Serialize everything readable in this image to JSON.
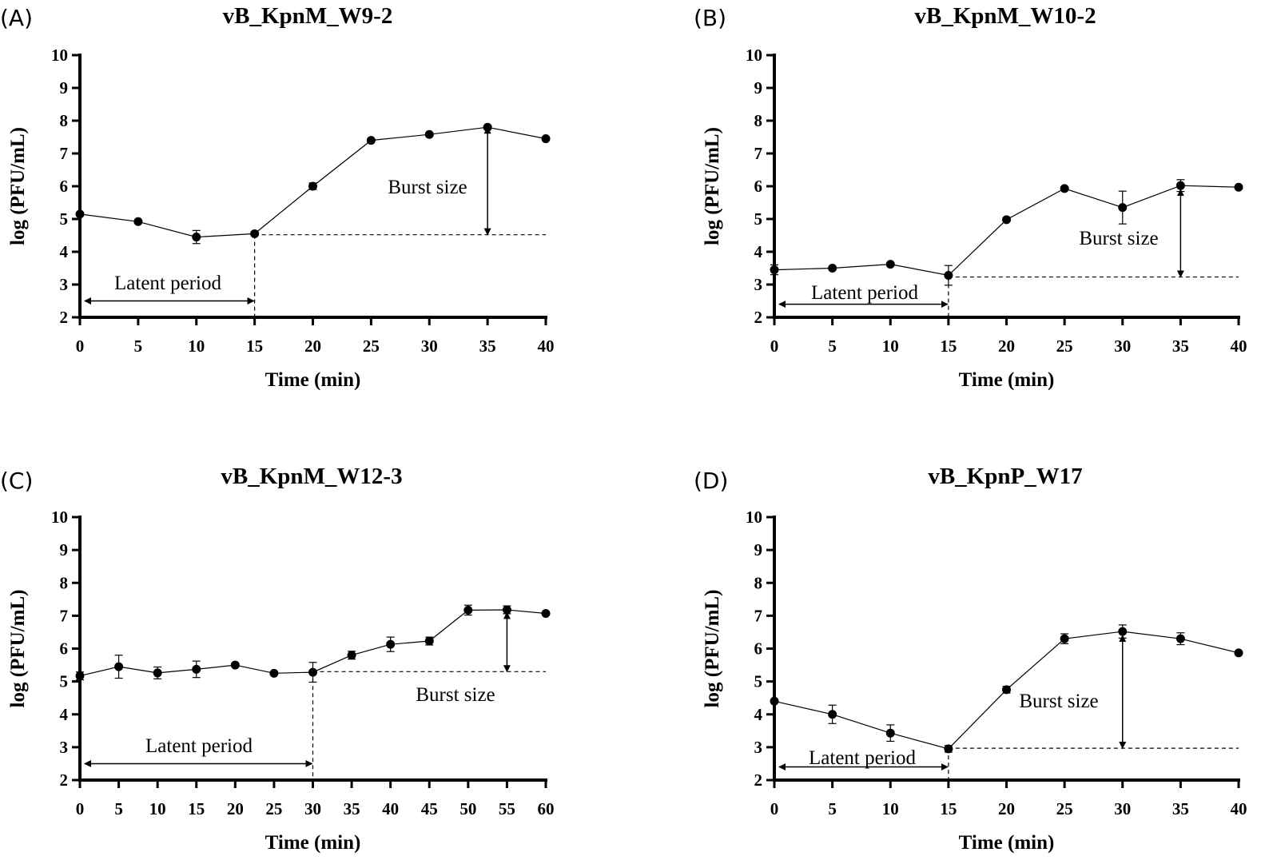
{
  "chart_data": [
    {
      "type": "line",
      "panel": "(A)",
      "title": "vB_KpnM_W9-2",
      "xlabel": "Time (min)",
      "ylabel": "log (PFU/mL)",
      "xlim": [
        0,
        40
      ],
      "ylim": [
        2,
        10
      ],
      "xticks": [
        0,
        5,
        10,
        15,
        20,
        25,
        30,
        35,
        40
      ],
      "yticks": [
        2,
        3,
        4,
        5,
        6,
        7,
        8,
        9,
        10
      ],
      "series": [
        {
          "x": [
            0,
            5,
            10,
            15,
            20,
            25,
            30,
            35,
            40
          ],
          "y": [
            5.15,
            4.92,
            4.45,
            4.55,
            6.0,
            7.4,
            7.58,
            7.8,
            7.45
          ],
          "err": [
            0.05,
            0.05,
            0.2,
            0.05,
            0.1,
            0.05,
            0.05,
            0.05,
            0.05
          ]
        }
      ],
      "annotations": {
        "latent": {
          "label": "Latent period",
          "x_start": 0,
          "x_end": 15,
          "y": 2.5
        },
        "baseline": {
          "x_start": 15,
          "x_end": 40,
          "y": 4.52
        },
        "burst": {
          "label": "Burst size",
          "x": 35,
          "y_low": 4.52,
          "y_high": 7.8
        }
      }
    },
    {
      "type": "line",
      "panel": "(B)",
      "title": "vB_KpnM_W10-2",
      "xlabel": "Time (min)",
      "ylabel": "log (PFU/mL)",
      "xlim": [
        0,
        40
      ],
      "ylim": [
        2,
        10
      ],
      "xticks": [
        0,
        5,
        10,
        15,
        20,
        25,
        30,
        35,
        40
      ],
      "yticks": [
        2,
        3,
        4,
        5,
        6,
        7,
        8,
        9,
        10
      ],
      "series": [
        {
          "x": [
            0,
            5,
            10,
            15,
            20,
            25,
            30,
            35,
            40
          ],
          "y": [
            3.45,
            3.5,
            3.62,
            3.28,
            4.98,
            5.93,
            5.35,
            6.02,
            5.97
          ],
          "err": [
            0.15,
            0.05,
            0.05,
            0.3,
            0.05,
            0.05,
            0.5,
            0.18,
            0.05
          ]
        }
      ],
      "annotations": {
        "latent": {
          "label": "Latent period",
          "x_start": 0,
          "x_end": 15,
          "y": 2.4
        },
        "baseline": {
          "x_start": 15,
          "x_end": 40,
          "y": 3.23
        },
        "burst": {
          "label": "Burst size",
          "x": 35,
          "y_low": 3.23,
          "y_high": 5.9
        }
      }
    },
    {
      "type": "line",
      "panel": "(C)",
      "title": "vB_KpnM_W12-3",
      "xlabel": "Time (min)",
      "ylabel": "log (PFU/mL)",
      "xlim": [
        0,
        60
      ],
      "ylim": [
        2,
        10
      ],
      "xticks": [
        0,
        5,
        10,
        15,
        20,
        25,
        30,
        35,
        40,
        45,
        50,
        55,
        60
      ],
      "yticks": [
        2,
        3,
        4,
        5,
        6,
        7,
        8,
        9,
        10
      ],
      "series": [
        {
          "x": [
            0,
            5,
            10,
            15,
            20,
            25,
            30,
            35,
            40,
            45,
            50,
            55,
            60
          ],
          "y": [
            5.17,
            5.45,
            5.26,
            5.37,
            5.5,
            5.25,
            5.28,
            5.8,
            6.13,
            6.23,
            7.17,
            7.18,
            7.07
          ],
          "err": [
            0.12,
            0.35,
            0.18,
            0.25,
            0.05,
            0.05,
            0.3,
            0.12,
            0.22,
            0.12,
            0.15,
            0.12,
            0.05
          ]
        }
      ],
      "annotations": {
        "latent": {
          "label": "Latent period",
          "x_start": 0,
          "x_end": 30,
          "y": 2.5
        },
        "baseline": {
          "x_start": 30,
          "x_end": 60,
          "y": 5.3
        },
        "burst": {
          "label": "Burst size",
          "x": 55,
          "y_low": 5.3,
          "y_high": 7.1
        }
      }
    },
    {
      "type": "line",
      "panel": "(D)",
      "title": "vB_KpnP_W17",
      "xlabel": "Time (min)",
      "ylabel": "log (PFU/mL)",
      "xlim": [
        0,
        40
      ],
      "ylim": [
        2,
        10
      ],
      "xticks": [
        0,
        5,
        10,
        15,
        20,
        25,
        30,
        35,
        40
      ],
      "yticks": [
        2,
        3,
        4,
        5,
        6,
        7,
        8,
        9,
        10
      ],
      "series": [
        {
          "x": [
            0,
            5,
            10,
            15,
            20,
            25,
            30,
            35,
            40
          ],
          "y": [
            4.4,
            4.0,
            3.43,
            2.95,
            4.75,
            6.3,
            6.52,
            6.3,
            5.87
          ],
          "err": [
            0.05,
            0.28,
            0.25,
            0.1,
            0.1,
            0.15,
            0.2,
            0.18,
            0.05
          ]
        }
      ],
      "annotations": {
        "latent": {
          "label": "Latent period",
          "x_start": 0,
          "x_end": 15,
          "y": 2.4
        },
        "baseline": {
          "x_start": 15,
          "x_end": 40,
          "y": 2.97
        },
        "burst": {
          "label": "Burst size",
          "x": 30,
          "y_low": 2.97,
          "y_high": 6.4
        }
      }
    }
  ]
}
